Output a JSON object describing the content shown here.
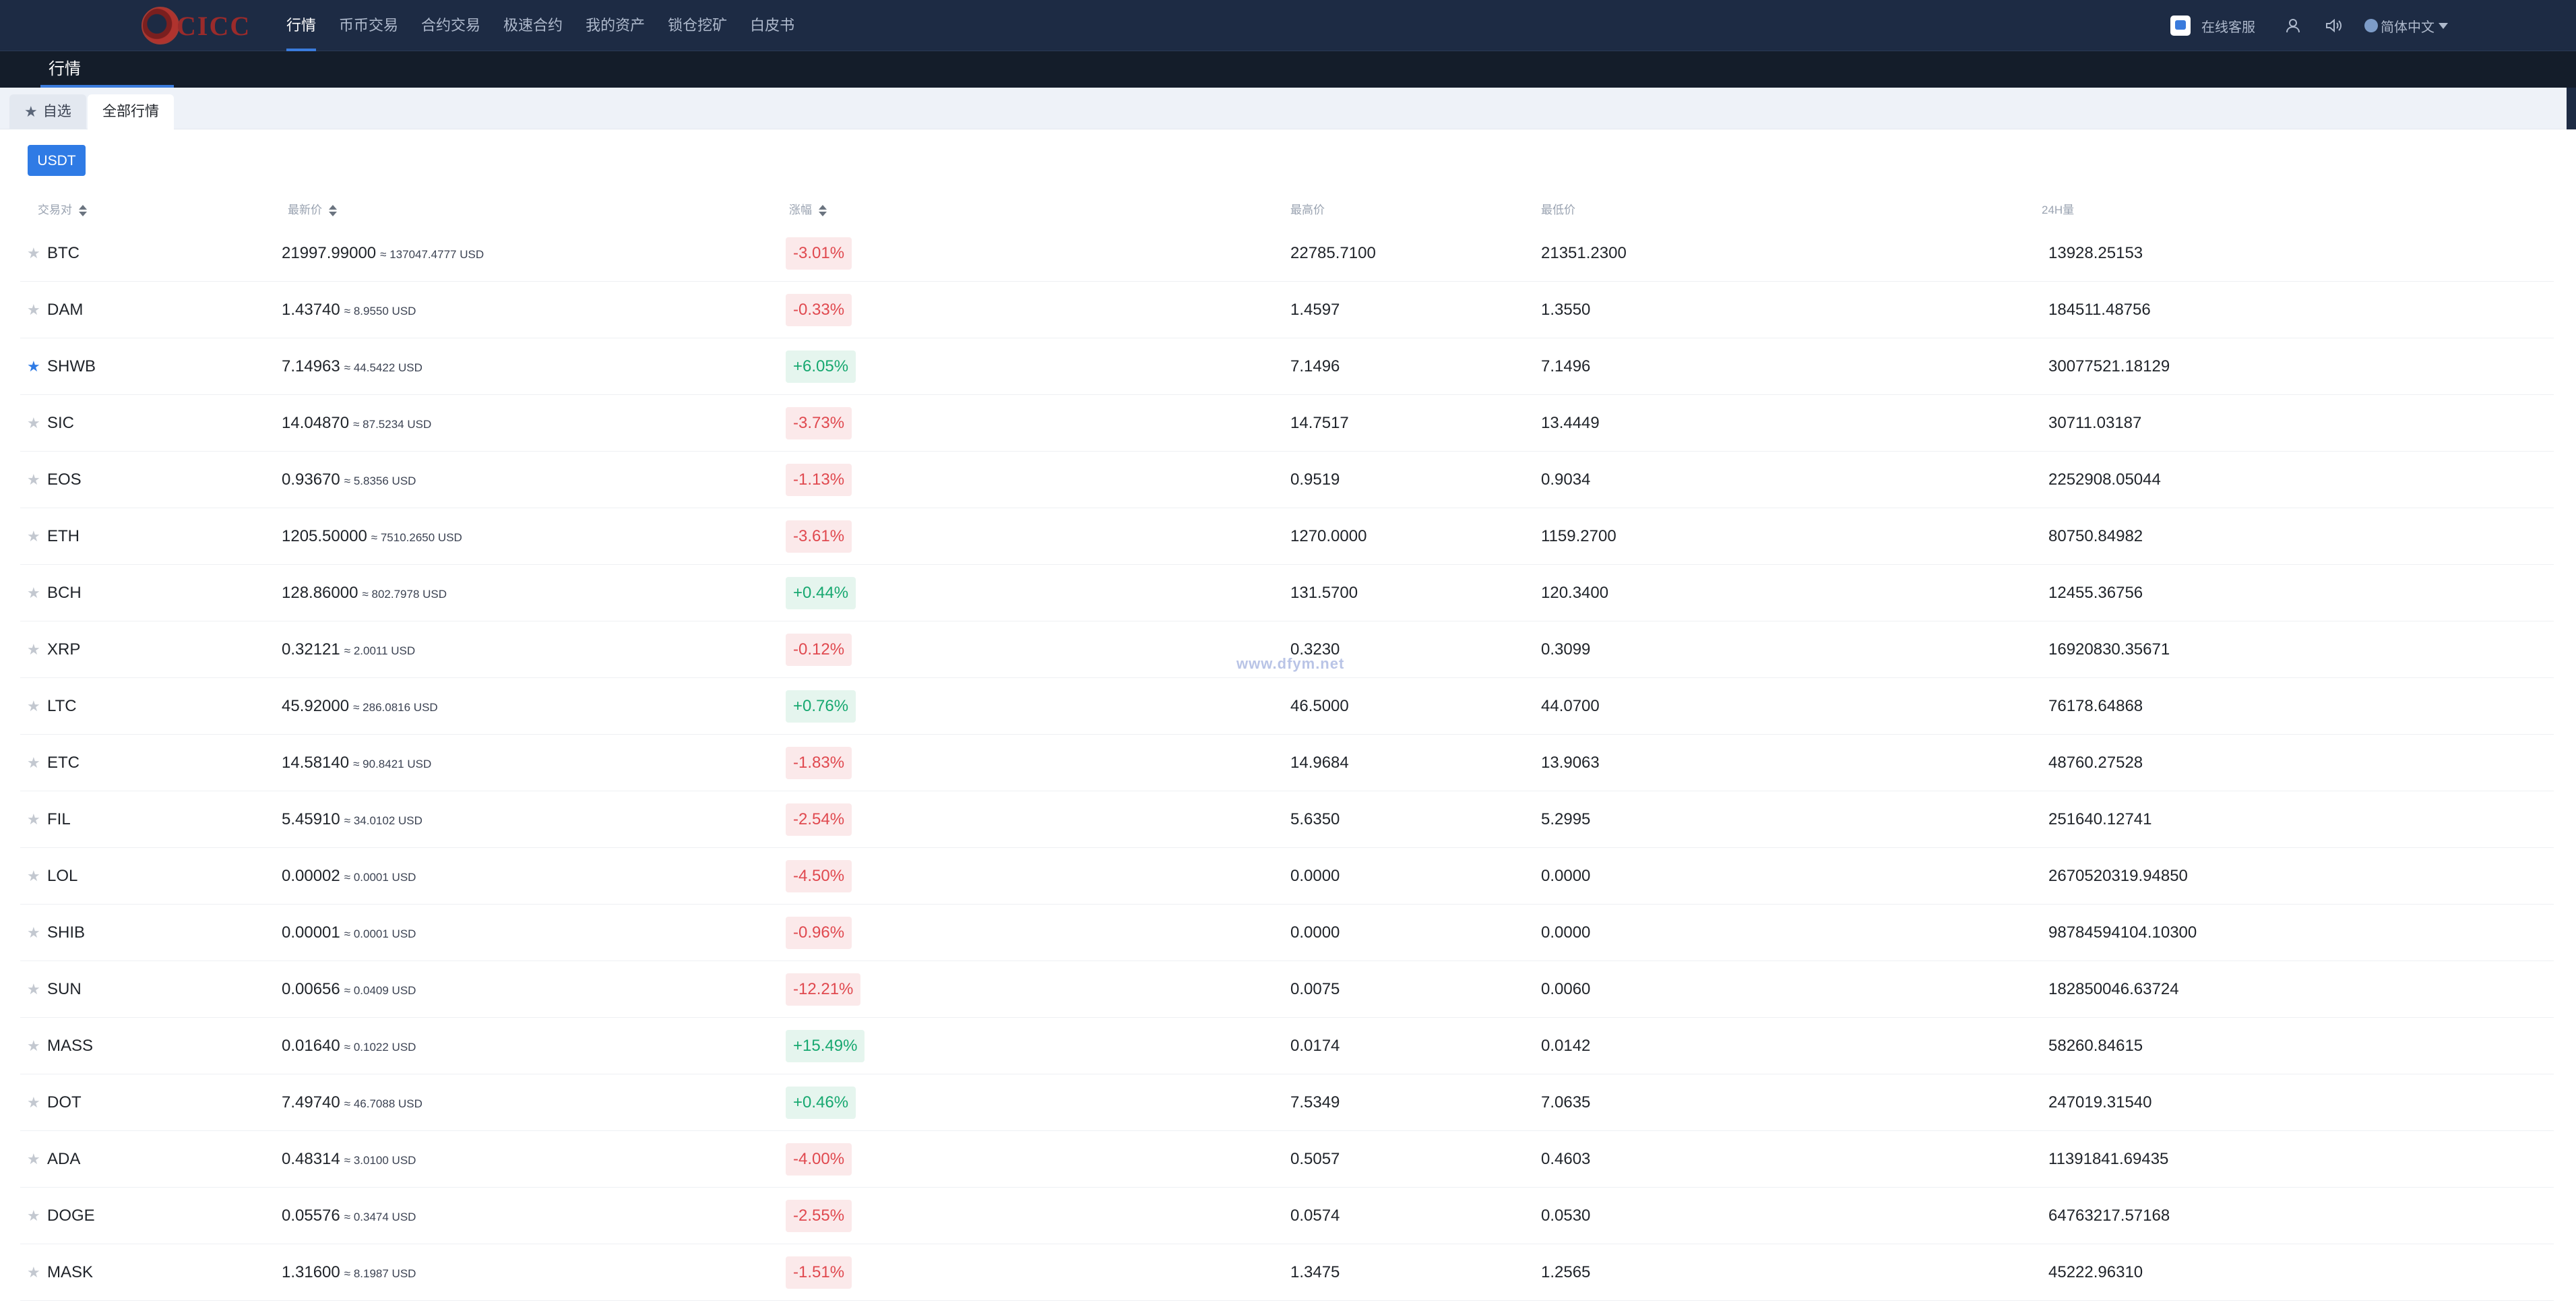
{
  "header": {
    "logo_text": "CICC",
    "nav": [
      "行情",
      "币币交易",
      "合约交易",
      "极速合约",
      "我的资产",
      "锁仓挖矿",
      "白皮书"
    ],
    "service_label": "在线客服",
    "language_label": "简体中文"
  },
  "subheader": {
    "title": "行情"
  },
  "tabs": {
    "favorites": "自选",
    "all": "全部行情"
  },
  "filter": {
    "usdt": "USDT"
  },
  "table": {
    "columns": {
      "pair": "交易对",
      "price": "最新价",
      "change": "涨幅",
      "high": "最高价",
      "low": "最低价",
      "volume": "24H量"
    },
    "rows": [
      {
        "pair": "BTC",
        "price": "21997.99000",
        "approx": "≈ 137047.4777 USD",
        "change": "-3.01%",
        "dir": "neg",
        "high": "22785.7100",
        "low": "21351.2300",
        "volume": "13928.25153",
        "starred": false
      },
      {
        "pair": "DAM",
        "price": "1.43740",
        "approx": "≈ 8.9550 USD",
        "change": "-0.33%",
        "dir": "neg",
        "high": "1.4597",
        "low": "1.3550",
        "volume": "184511.48756",
        "starred": false
      },
      {
        "pair": "SHWB",
        "price": "7.14963",
        "approx": "≈ 44.5422 USD",
        "change": "+6.05%",
        "dir": "pos",
        "high": "7.1496",
        "low": "7.1496",
        "volume": "30077521.18129",
        "starred": true
      },
      {
        "pair": "SIC",
        "price": "14.04870",
        "approx": "≈ 87.5234 USD",
        "change": "-3.73%",
        "dir": "neg",
        "high": "14.7517",
        "low": "13.4449",
        "volume": "30711.03187",
        "starred": false
      },
      {
        "pair": "EOS",
        "price": "0.93670",
        "approx": "≈ 5.8356 USD",
        "change": "-1.13%",
        "dir": "neg",
        "high": "0.9519",
        "low": "0.9034",
        "volume": "2252908.05044",
        "starred": false
      },
      {
        "pair": "ETH",
        "price": "1205.50000",
        "approx": "≈ 7510.2650 USD",
        "change": "-3.61%",
        "dir": "neg",
        "high": "1270.0000",
        "low": "1159.2700",
        "volume": "80750.84982",
        "starred": false
      },
      {
        "pair": "BCH",
        "price": "128.86000",
        "approx": "≈ 802.7978 USD",
        "change": "+0.44%",
        "dir": "pos",
        "high": "131.5700",
        "low": "120.3400",
        "volume": "12455.36756",
        "starred": false
      },
      {
        "pair": "XRP",
        "price": "0.32121",
        "approx": "≈ 2.0011 USD",
        "change": "-0.12%",
        "dir": "neg",
        "high": "0.3230",
        "low": "0.3099",
        "volume": "16920830.35671",
        "starred": false
      },
      {
        "pair": "LTC",
        "price": "45.92000",
        "approx": "≈ 286.0816 USD",
        "change": "+0.76%",
        "dir": "pos",
        "high": "46.5000",
        "low": "44.0700",
        "volume": "76178.64868",
        "starred": false
      },
      {
        "pair": "ETC",
        "price": "14.58140",
        "approx": "≈ 90.8421 USD",
        "change": "-1.83%",
        "dir": "neg",
        "high": "14.9684",
        "low": "13.9063",
        "volume": "48760.27528",
        "starred": false
      },
      {
        "pair": "FIL",
        "price": "5.45910",
        "approx": "≈ 34.0102 USD",
        "change": "-2.54%",
        "dir": "neg",
        "high": "5.6350",
        "low": "5.2995",
        "volume": "251640.12741",
        "starred": false
      },
      {
        "pair": "LOL",
        "price": "0.00002",
        "approx": "≈ 0.0001 USD",
        "change": "-4.50%",
        "dir": "neg",
        "high": "0.0000",
        "low": "0.0000",
        "volume": "2670520319.94850",
        "starred": false
      },
      {
        "pair": "SHIB",
        "price": "0.00001",
        "approx": "≈ 0.0001 USD",
        "change": "-0.96%",
        "dir": "neg",
        "high": "0.0000",
        "low": "0.0000",
        "volume": "98784594104.10300",
        "starred": false
      },
      {
        "pair": "SUN",
        "price": "0.00656",
        "approx": "≈ 0.0409 USD",
        "change": "-12.21%",
        "dir": "neg",
        "high": "0.0075",
        "low": "0.0060",
        "volume": "182850046.63724",
        "starred": false
      },
      {
        "pair": "MASS",
        "price": "0.01640",
        "approx": "≈ 0.1022 USD",
        "change": "+15.49%",
        "dir": "pos",
        "high": "0.0174",
        "low": "0.0142",
        "volume": "58260.84615",
        "starred": false
      },
      {
        "pair": "DOT",
        "price": "7.49740",
        "approx": "≈ 46.7088 USD",
        "change": "+0.46%",
        "dir": "pos",
        "high": "7.5349",
        "low": "7.0635",
        "volume": "247019.31540",
        "starred": false
      },
      {
        "pair": "ADA",
        "price": "0.48314",
        "approx": "≈ 3.0100 USD",
        "change": "-4.00%",
        "dir": "neg",
        "high": "0.5057",
        "low": "0.4603",
        "volume": "11391841.69435",
        "starred": false
      },
      {
        "pair": "DOGE",
        "price": "0.05576",
        "approx": "≈ 0.3474 USD",
        "change": "-2.55%",
        "dir": "neg",
        "high": "0.0574",
        "low": "0.0530",
        "volume": "64763217.57168",
        "starred": false
      },
      {
        "pair": "MASK",
        "price": "1.31600",
        "approx": "≈ 8.1987 USD",
        "change": "-1.51%",
        "dir": "neg",
        "high": "1.3475",
        "low": "1.2565",
        "volume": "45222.96310",
        "starred": false
      }
    ]
  },
  "watermark": "www.dfym.net",
  "colors": {
    "nav_bg": "#1d2b44",
    "accent": "#2f7be5",
    "negative": "#e0494f",
    "positive": "#17a870"
  }
}
